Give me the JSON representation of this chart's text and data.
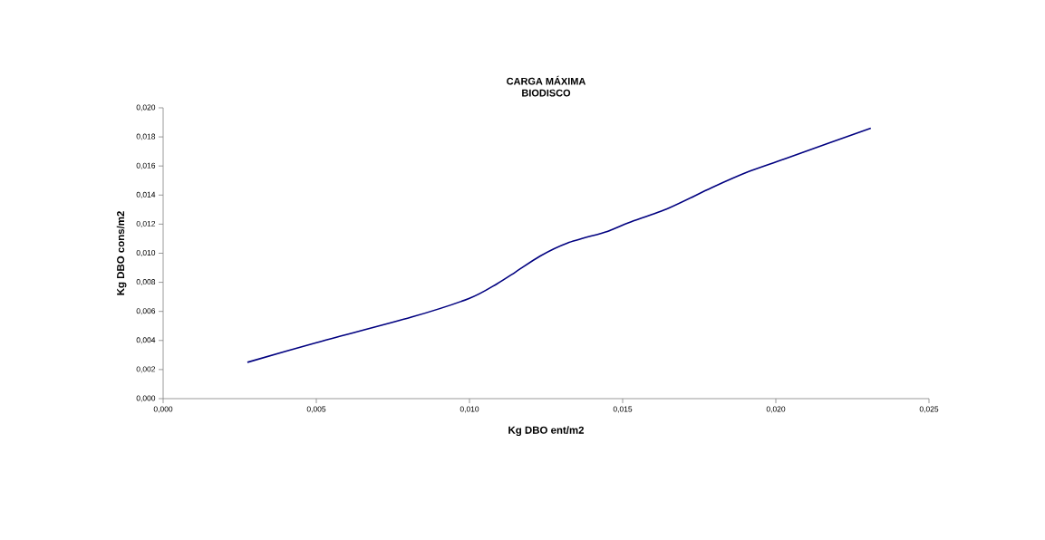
{
  "chart_data": {
    "type": "line",
    "title": "CARGA MÁXIMA",
    "subtitle": "BIODISCO",
    "xlabel": "Kg DBO ent/m2",
    "ylabel": "Kg DBO cons/m2",
    "x": [
      0.00275,
      0.005,
      0.0081,
      0.01,
      0.0109,
      0.0115,
      0.0123,
      0.0132,
      0.0145,
      0.0152,
      0.0165,
      0.0179,
      0.0191,
      0.0203,
      0.0231
    ],
    "series": [
      {
        "color": "#000080",
        "values": [
          0.0025,
          0.00385,
          0.0056,
          0.0069,
          0.0079,
          0.0087,
          0.0098,
          0.0107,
          0.0115,
          0.0121,
          0.0131,
          0.0145,
          0.0156,
          0.0165,
          0.0186
        ]
      }
    ],
    "xlim": [
      0,
      0.025
    ],
    "ylim": [
      0,
      0.02
    ],
    "xticks": [
      {
        "value": 0,
        "label": "0,000"
      },
      {
        "value": 0.005,
        "label": "0,005"
      },
      {
        "value": 0.01,
        "label": "0,010"
      },
      {
        "value": 0.015,
        "label": "0,015"
      },
      {
        "value": 0.02,
        "label": "0,020"
      },
      {
        "value": 0.025,
        "label": "0,025"
      }
    ],
    "yticks": [
      {
        "value": 0,
        "label": "0,000"
      },
      {
        "value": 0.002,
        "label": "0,002"
      },
      {
        "value": 0.004,
        "label": "0,004"
      },
      {
        "value": 0.006,
        "label": "0,006"
      },
      {
        "value": 0.008,
        "label": "0,008"
      },
      {
        "value": 0.01,
        "label": "0,010"
      },
      {
        "value": 0.012,
        "label": "0,012"
      },
      {
        "value": 0.014,
        "label": "0,014"
      },
      {
        "value": 0.016,
        "label": "0,016"
      },
      {
        "value": 0.018,
        "label": "0,018"
      },
      {
        "value": 0.02,
        "label": "0,020"
      }
    ],
    "grid": false,
    "legend": false,
    "marker": "none",
    "line_style": "solid"
  }
}
